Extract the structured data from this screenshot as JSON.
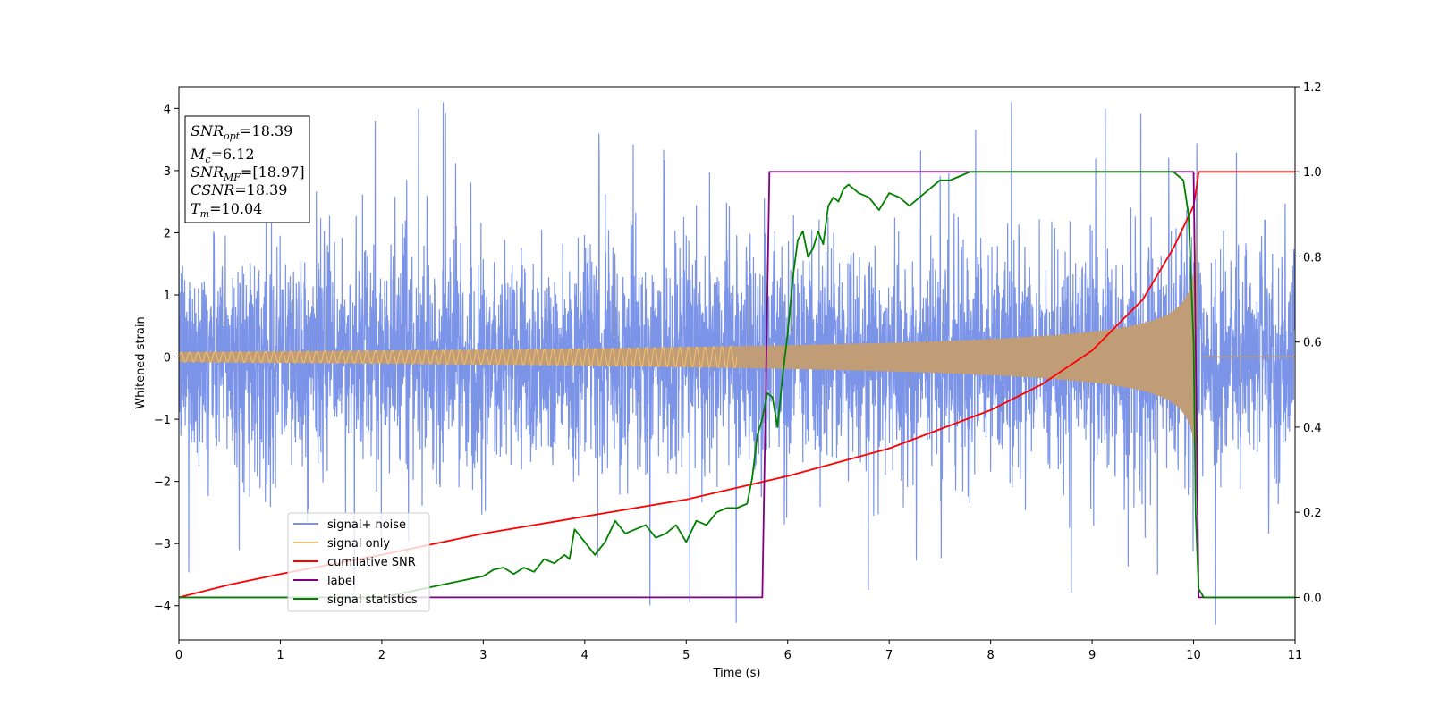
{
  "chart_data": {
    "type": "line",
    "xlabel": "Time (s)",
    "ylabel": "Whitened strain",
    "xlim": [
      0,
      11
    ],
    "ylim_left": [
      -4.55,
      4.35
    ],
    "ylim_right": [
      -0.1,
      1.2
    ],
    "x_ticks": [
      "0",
      "1",
      "2",
      "3",
      "4",
      "5",
      "6",
      "7",
      "8",
      "9",
      "10",
      "11"
    ],
    "y_ticks_left": [
      "−4",
      "−3",
      "−2",
      "−1",
      "0",
      "1",
      "2",
      "3",
      "4"
    ],
    "y_ticks_right": [
      "0.0",
      "0.2",
      "0.4",
      "0.6",
      "0.8",
      "1.0",
      "1.2"
    ],
    "legend_position": "lower-left",
    "info_box": {
      "snr_opt": {
        "sym": "SNR",
        "sub": "opt",
        "value": "=18.39"
      },
      "mc": {
        "sym": "M",
        "sub": "c",
        "value": "=6.12"
      },
      "snr_mf": {
        "sym": "SNR",
        "sub": "MF",
        "value": "=[18.97]"
      },
      "csnr": {
        "sym": "CSNR",
        "sub": "",
        "value": "=18.39"
      },
      "tm": {
        "sym": "T",
        "sub": "m",
        "value": "=10.04"
      }
    },
    "series": [
      {
        "name": "signal+ noise",
        "color": "#7b94e8",
        "axis": "left",
        "kind": "noise",
        "sigma": 1.0,
        "range": [
          0,
          11
        ]
      },
      {
        "name": "signal only",
        "color": "#f5c06b",
        "axis": "left",
        "kind": "chirp",
        "t_merge": 10.04,
        "amplitude_start": 0.08,
        "amplitude_end": 1.2
      },
      {
        "name": "cumilative SNR",
        "color": "#ff0000",
        "axis": "right",
        "x": [
          0,
          0.5,
          1,
          2,
          3,
          4,
          5,
          6,
          7,
          8,
          8.5,
          9,
          9.5,
          9.8,
          10.0,
          10.04,
          10.05,
          11
        ],
        "y": [
          0,
          0.03,
          0.055,
          0.1,
          0.15,
          0.19,
          0.23,
          0.285,
          0.35,
          0.44,
          0.5,
          0.58,
          0.7,
          0.82,
          0.92,
          0.98,
          1.0,
          1.0
        ]
      },
      {
        "name": "label",
        "color": "#800080",
        "axis": "right",
        "x": [
          0,
          5.75,
          5.82,
          10.0,
          10.05,
          11
        ],
        "y": [
          0,
          0,
          1,
          1,
          0,
          0
        ]
      },
      {
        "name": "signal statistics",
        "color": "#008000",
        "axis": "right",
        "x": [
          0,
          0.5,
          1,
          1.5,
          2,
          2.2,
          2.4,
          2.6,
          2.8,
          3.0,
          3.1,
          3.2,
          3.3,
          3.4,
          3.5,
          3.6,
          3.7,
          3.8,
          3.85,
          3.9,
          4.0,
          4.1,
          4.2,
          4.3,
          4.4,
          4.5,
          4.6,
          4.7,
          4.8,
          4.9,
          5.0,
          5.1,
          5.2,
          5.3,
          5.4,
          5.5,
          5.6,
          5.65,
          5.7,
          5.75,
          5.8,
          5.85,
          5.9,
          5.95,
          6.0,
          6.05,
          6.1,
          6.15,
          6.2,
          6.25,
          6.3,
          6.35,
          6.4,
          6.45,
          6.5,
          6.55,
          6.6,
          6.7,
          6.8,
          6.9,
          7.0,
          7.1,
          7.2,
          7.3,
          7.4,
          7.5,
          7.6,
          7.7,
          7.8,
          8.0,
          8.5,
          9.0,
          9.5,
          9.8,
          9.9,
          9.95,
          10.0,
          10.02,
          10.05,
          10.1,
          11
        ],
        "y": [
          0,
          0,
          0,
          0,
          0,
          0.01,
          0.02,
          0.03,
          0.04,
          0.05,
          0.065,
          0.07,
          0.055,
          0.07,
          0.06,
          0.09,
          0.08,
          0.1,
          0.09,
          0.16,
          0.13,
          0.1,
          0.13,
          0.18,
          0.15,
          0.16,
          0.17,
          0.14,
          0.15,
          0.17,
          0.13,
          0.18,
          0.17,
          0.2,
          0.21,
          0.21,
          0.22,
          0.28,
          0.38,
          0.42,
          0.48,
          0.47,
          0.4,
          0.52,
          0.62,
          0.75,
          0.84,
          0.86,
          0.8,
          0.82,
          0.86,
          0.83,
          0.92,
          0.94,
          0.93,
          0.96,
          0.97,
          0.95,
          0.94,
          0.91,
          0.95,
          0.94,
          0.92,
          0.94,
          0.96,
          0.98,
          0.98,
          0.99,
          1.0,
          1.0,
          1.0,
          1.0,
          1.0,
          1.0,
          0.98,
          0.9,
          0.6,
          0.2,
          0.02,
          0.0,
          0.0
        ]
      }
    ]
  }
}
